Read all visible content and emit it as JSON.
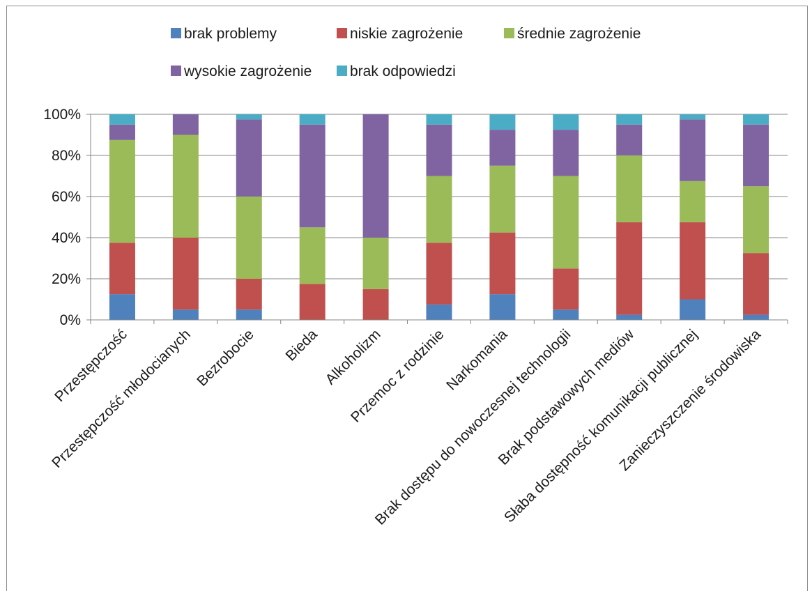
{
  "chart_data": {
    "type": "bar",
    "stacked": true,
    "normalized": true,
    "categories": [
      "Przestępczość",
      "Przestępczość młodocianych",
      "Bezrobocie",
      "Bieda",
      "Alkoholizm",
      "Przemoc z rodzinie",
      "Narkomania",
      "Brak dostępu do nowoczesnej technologii",
      "Brak podstawowych mediów",
      "Słaba dostępność komunikacji publicznej",
      "Zanieczyszczenie środowiska"
    ],
    "series": [
      {
        "name": "brak problemy",
        "color": "#4f81bd",
        "values": [
          12.5,
          5,
          5,
          0,
          0,
          7.5,
          12.5,
          5,
          2.5,
          10,
          2.5
        ]
      },
      {
        "name": "niskie zagrożenie",
        "color": "#c0504d",
        "values": [
          25,
          35,
          15,
          17.5,
          15,
          30,
          30,
          20,
          45,
          37.5,
          30
        ]
      },
      {
        "name": "średnie zagrożenie",
        "color": "#9bbb59",
        "values": [
          50,
          50,
          40,
          27.5,
          25,
          32.5,
          32.5,
          45,
          32.5,
          20,
          32.5
        ]
      },
      {
        "name": "wysokie zagrożenie",
        "color": "#8064a2",
        "values": [
          7.5,
          10,
          37.5,
          50,
          60,
          25,
          17.5,
          22.5,
          15,
          30,
          30
        ]
      },
      {
        "name": "brak odpowiedzi",
        "color": "#4bacc6",
        "values": [
          5,
          0,
          2.5,
          5,
          0,
          5,
          7.5,
          7.5,
          5,
          2.5,
          5
        ]
      }
    ],
    "y_ticks": [
      "0%",
      "20%",
      "40%",
      "60%",
      "80%",
      "100%"
    ],
    "ylim": [
      0,
      100
    ],
    "grid": true,
    "legend_position": "top",
    "title": "",
    "xlabel": "",
    "ylabel": ""
  }
}
